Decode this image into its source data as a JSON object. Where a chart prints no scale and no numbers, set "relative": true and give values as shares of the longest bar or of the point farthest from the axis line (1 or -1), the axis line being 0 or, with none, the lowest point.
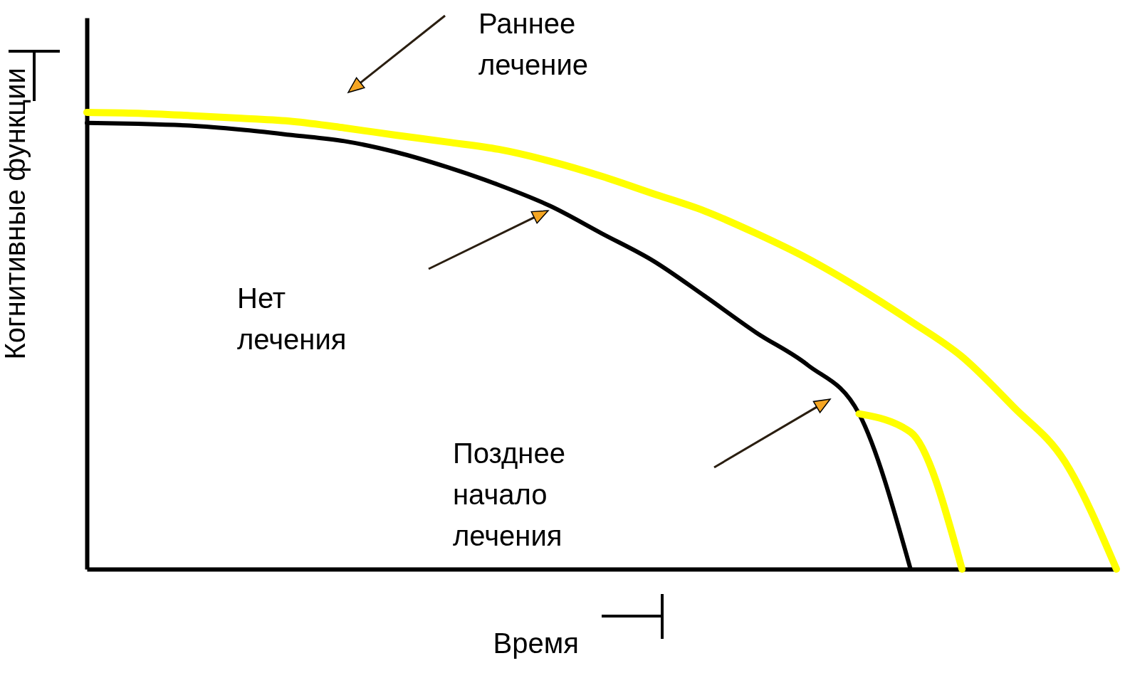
{
  "chart_data": {
    "type": "line",
    "relative": true,
    "xlabel": "Время",
    "ylabel": "Когнитивные функции",
    "line_style": "solid",
    "categories": [
      null,
      null,
      null,
      null,
      null,
      null,
      null,
      null,
      null,
      null,
      null,
      null,
      null,
      null,
      null,
      null,
      null,
      null,
      null,
      null,
      null
    ],
    "annotations": [
      "Раннее лечение",
      "Нет лечения",
      "Позднее начало лечения"
    ],
    "series": [
      {
        "color": "#ffff00",
        "values": [
          1,
          0.998,
          0.993,
          0.987,
          0.98,
          0.966,
          0.95,
          0.935,
          0.919,
          0.893,
          0.86,
          0.822,
          0.784,
          0.735,
          0.68,
          0.615,
          0.543,
          0.465,
          0.355,
          0.235,
          0
        ]
      },
      {
        "color": "#000000",
        "values": [
          0.977,
          0.975,
          0.971,
          0.962,
          0.95,
          0.937,
          0.913,
          0.88,
          0.841,
          0.795,
          0.735,
          0.675,
          0.598,
          0.518,
          0.447,
          0.34,
          0,
          null,
          null,
          null,
          null
        ]
      },
      {
        "color": "#ffff00",
        "values": [
          null,
          null,
          null,
          null,
          null,
          null,
          null,
          null,
          null,
          null,
          null,
          null,
          null,
          null,
          null,
          0.34,
          0.3,
          0,
          null,
          null,
          null
        ]
      }
    ]
  }
}
